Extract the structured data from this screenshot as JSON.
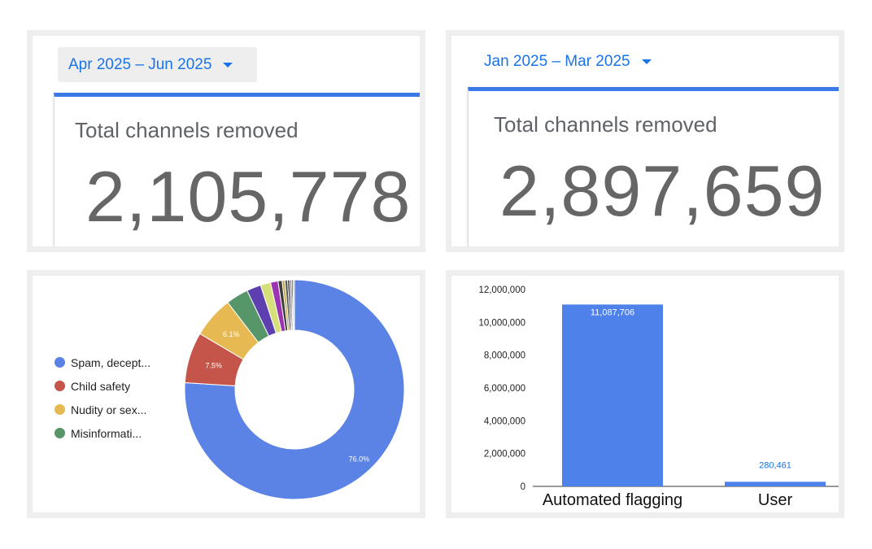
{
  "panels": {
    "q2": {
      "date_range": "Apr 2025 – Jun 2025",
      "label": "Total channels removed",
      "value": "2,105,778"
    },
    "q1": {
      "date_range": "Jan 2025 – Mar 2025",
      "label": "Total channels removed",
      "value": "2,897,659"
    }
  },
  "icons": {
    "dropdown": "caret-down-icon"
  },
  "colors": {
    "accent": "#1a73e8",
    "card_bar": "#3b78e7",
    "bar": "#4f81ea"
  },
  "chart_data": [
    {
      "type": "pie",
      "donut": true,
      "legend": [
        "Spam, decept...",
        "Child safety",
        "Nudity or sex...",
        "Misinformati..."
      ],
      "slices": [
        {
          "value": 76.0,
          "color": "#5b83e5",
          "label": "76.0%"
        },
        {
          "value": 7.5,
          "color": "#c5554a",
          "label": "7.5%"
        },
        {
          "value": 6.1,
          "color": "#e6b953",
          "label": "6.1%"
        },
        {
          "value": 3.3,
          "color": "#579668",
          "label": ""
        },
        {
          "value": 2.1,
          "color": "#5d3fb0",
          "label": ""
        },
        {
          "value": 1.5,
          "color": "#d6e07a",
          "label": ""
        },
        {
          "value": 1.1,
          "color": "#9c33b3",
          "label": ""
        },
        {
          "value": 0.6,
          "color": "#3c3c3c",
          "label": ""
        },
        {
          "value": 0.4,
          "color": "#c4a84a",
          "label": ""
        },
        {
          "value": 0.4,
          "color": "#555555",
          "label": ""
        },
        {
          "value": 0.3,
          "color": "#2a2a2a",
          "label": ""
        },
        {
          "value": 0.3,
          "color": "#8a8a8a",
          "label": ""
        },
        {
          "value": 0.2,
          "color": "#111111",
          "label": ""
        },
        {
          "value": 0.2,
          "color": "#b0a070",
          "label": ""
        }
      ]
    },
    {
      "type": "bar",
      "categories": [
        "Automated flagging",
        "User"
      ],
      "values": [
        11087706,
        280461
      ],
      "value_labels": [
        "11,087,706",
        "280,461"
      ],
      "ylim": [
        0,
        12000000
      ],
      "ticks": [
        "0",
        "2,000,000",
        "4,000,000",
        "6,000,000",
        "8,000,000",
        "10,000,000",
        "12,000,000"
      ],
      "grid": false
    }
  ]
}
